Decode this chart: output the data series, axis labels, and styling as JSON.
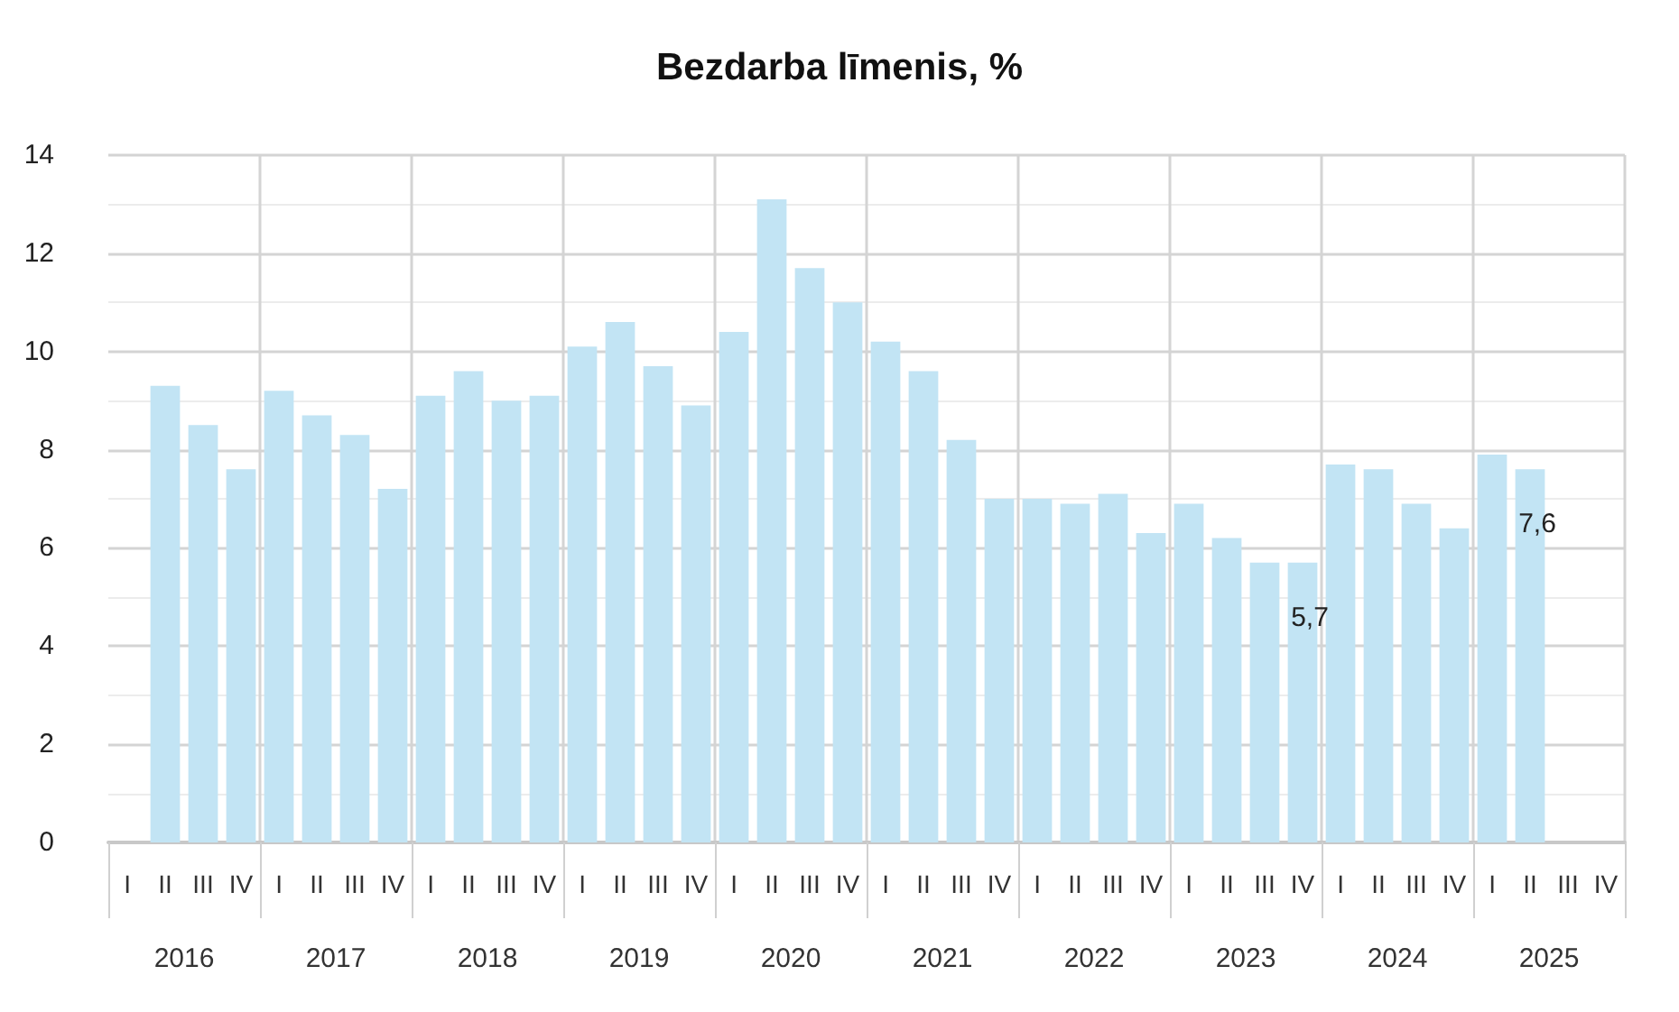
{
  "chart_data": {
    "type": "bar",
    "title": "Bezdarba līmenis, %",
    "categories": [
      "I",
      "II",
      "III",
      "IV",
      "I",
      "II",
      "III",
      "IV",
      "I",
      "II",
      "III",
      "IV",
      "I",
      "II",
      "III",
      "IV",
      "I",
      "II",
      "III",
      "IV",
      "I",
      "II",
      "III",
      "IV",
      "I",
      "II",
      "III",
      "IV",
      "I",
      "II",
      "III",
      "IV",
      "I",
      "II",
      "III",
      "IV",
      "I",
      "II",
      "III",
      "IV"
    ],
    "values": [
      null,
      9.3,
      8.5,
      7.6,
      9.2,
      8.7,
      8.3,
      7.2,
      9.1,
      9.6,
      9.0,
      9.1,
      10.1,
      10.6,
      9.7,
      8.9,
      10.4,
      13.1,
      11.7,
      11.0,
      10.2,
      9.6,
      8.2,
      7.0,
      7.0,
      6.9,
      7.1,
      6.3,
      6.9,
      6.2,
      5.7,
      5.7,
      7.7,
      7.6,
      6.9,
      6.4,
      7.9,
      7.6,
      null,
      null
    ],
    "value_labels": [
      null,
      null,
      null,
      null,
      null,
      null,
      null,
      null,
      null,
      null,
      null,
      null,
      null,
      null,
      null,
      null,
      null,
      null,
      null,
      null,
      null,
      null,
      null,
      null,
      null,
      null,
      null,
      null,
      null,
      null,
      null,
      "5,7",
      null,
      null,
      null,
      null,
      null,
      "7,6",
      null,
      null
    ],
    "color": "#c2e4f4",
    "ylim": [
      0,
      14
    ],
    "yticks": [
      0,
      2,
      4,
      6,
      8,
      10,
      12,
      14
    ],
    "grid": true,
    "annotations": [
      "2016",
      "2017",
      "2018",
      "2019",
      "2020",
      "2021",
      "2022",
      "2023",
      "2024",
      "2025"
    ]
  }
}
